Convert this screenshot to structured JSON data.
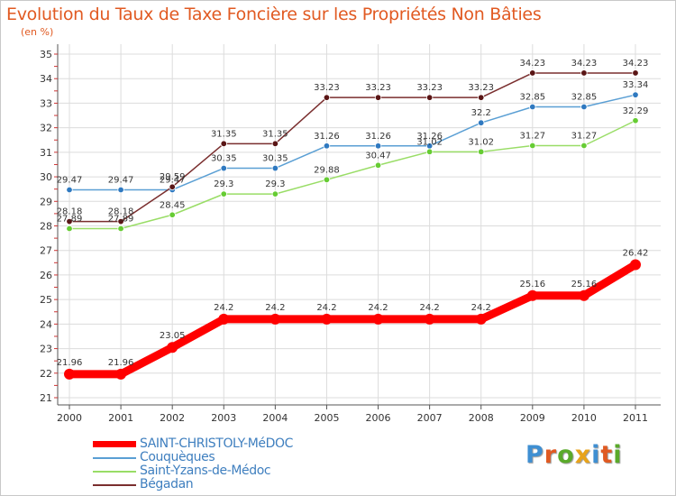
{
  "title": "Evolution du Taux de Taxe Foncière sur les Propriétés Non Bâties",
  "unit": "(en %)",
  "logo_text": "Proxiti",
  "colors": {
    "title": "#e15a22",
    "series": [
      "#ff0000",
      "#5a9fd4",
      "#99dd66",
      "#7a2e2e"
    ],
    "marker": [
      "#ff0000",
      "#2f79c0",
      "#66cc33",
      "#5a1515"
    ]
  },
  "chart_data": {
    "type": "line",
    "title": "Evolution du Taux de Taxe Foncière sur les Propriétés Non Bâties",
    "ylabel": "(en %)",
    "xlabel": "",
    "ylim": [
      21,
      35
    ],
    "yticks": [
      "21",
      "22",
      "23",
      "24",
      "25",
      "26",
      "27",
      "28",
      "29",
      "30",
      "31",
      "32",
      "33",
      "34",
      "35"
    ],
    "categories": [
      "2000",
      "2001",
      "2002",
      "2003",
      "2004",
      "2005",
      "2006",
      "2007",
      "2008",
      "2009",
      "2010",
      "2011"
    ],
    "series": [
      {
        "name": "SAINT-CHRISTOLY-MéDOC",
        "values": [
          21.96,
          21.96,
          23.05,
          24.2,
          24.2,
          24.2,
          24.2,
          24.2,
          24.2,
          25.16,
          25.16,
          26.42
        ],
        "labels": [
          "21.96",
          "21.96",
          "23.05",
          "24.2",
          "24.2",
          "24.2",
          "24.2",
          "24.2",
          "24.2",
          "25.16",
          "25.16",
          "26.42"
        ]
      },
      {
        "name": "Couquèques",
        "values": [
          29.47,
          29.47,
          29.47,
          30.35,
          30.35,
          31.26,
          31.26,
          31.26,
          32.2,
          32.85,
          32.85,
          33.34
        ],
        "labels": [
          "29.47",
          "29.47",
          "29.47",
          "30.35",
          "30.35",
          "31.26",
          "31.26",
          "31.26",
          "32.2",
          "32.85",
          "32.85",
          "33.34"
        ]
      },
      {
        "name": "Saint-Yzans-de-Médoc",
        "values": [
          27.89,
          27.89,
          28.45,
          29.3,
          29.3,
          29.88,
          30.47,
          31.02,
          31.02,
          31.27,
          31.27,
          32.29
        ],
        "labels": [
          "27.89",
          "27.89",
          "28.45",
          "29.3",
          "29.3",
          "29.88",
          "30.47",
          "31.02",
          "31.02",
          "31.27",
          "31.27",
          "32.29"
        ]
      },
      {
        "name": "Bégadan",
        "values": [
          28.18,
          28.18,
          29.59,
          31.35,
          31.35,
          33.23,
          33.23,
          33.23,
          33.23,
          34.23,
          34.23,
          34.23
        ],
        "labels": [
          "28.18",
          "28.18",
          "29.59",
          "31.35",
          "31.35",
          "33.23",
          "33.23",
          "33.23",
          "33.23",
          "34.23",
          "34.23",
          "34.23"
        ]
      }
    ]
  }
}
